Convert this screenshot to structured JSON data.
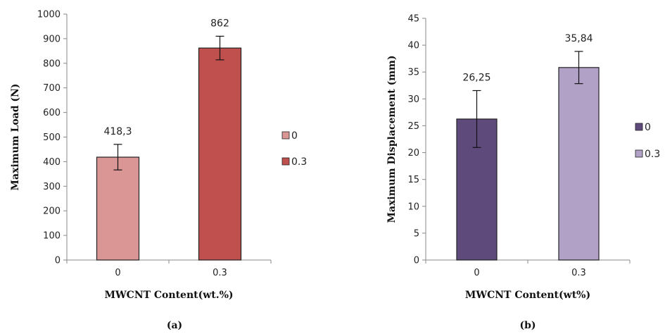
{
  "chart_data": [
    {
      "type": "bar",
      "caption": "(a)",
      "categories": [
        "0",
        "0.3"
      ],
      "values": [
        418.3,
        862
      ],
      "data_labels": [
        "418,3",
        "862"
      ],
      "errors": [
        52,
        48
      ],
      "colors": [
        "#d99694",
        "#c0504d"
      ],
      "legend": [
        "0",
        "0.3"
      ],
      "legend_position": "right",
      "xlabel": "MWCNT Content(wt.%)",
      "ylabel": "Maximum Load (N)",
      "ylim": [
        0,
        1000
      ],
      "yticks": [
        0,
        100,
        200,
        300,
        400,
        500,
        600,
        700,
        800,
        900,
        1000
      ],
      "grid": false
    },
    {
      "type": "bar",
      "caption": "(b)",
      "categories": [
        "0",
        "0.3"
      ],
      "values": [
        26.25,
        35.84
      ],
      "data_labels": [
        "26,25",
        "35,84"
      ],
      "errors": [
        5.3,
        3.0
      ],
      "colors": [
        "#5f4a7c",
        "#b2a1c7"
      ],
      "legend": [
        "0",
        "0.3"
      ],
      "legend_position": "right",
      "xlabel": "MWCNT Content(wt%)",
      "ylabel": "Maximum Displacement (mm)",
      "ylim": [
        0,
        45
      ],
      "yticks": [
        0,
        5,
        10,
        15,
        20,
        25,
        30,
        35,
        40,
        45
      ],
      "grid": false
    }
  ]
}
